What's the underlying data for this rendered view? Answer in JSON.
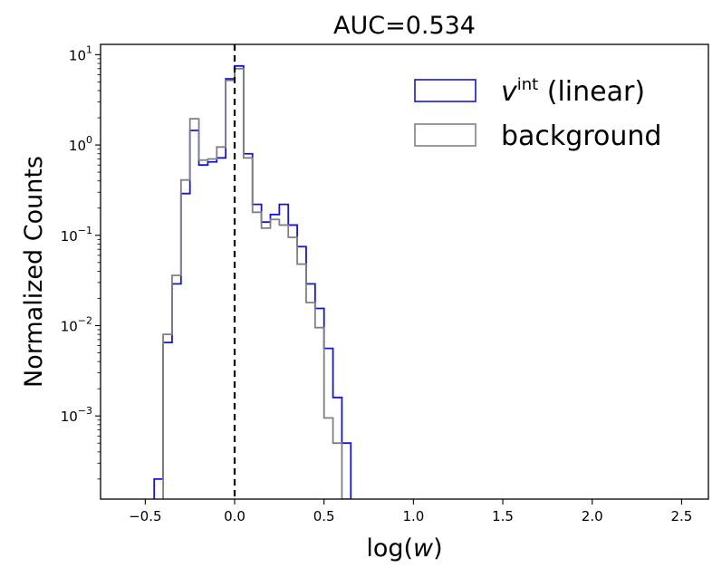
{
  "chart_data": {
    "type": "histogram",
    "title": "AUC=0.534",
    "xlabel": "log(w)",
    "xlabel_parts": {
      "prefix": "log(",
      "var": "w",
      "suffix": ")"
    },
    "ylabel": "Normalized Counts",
    "xlim": [
      -0.75,
      2.65
    ],
    "ylim": [
      0.00012,
      13
    ],
    "yscale": "log",
    "grid": false,
    "legend_position": "top-right",
    "x_ticks": [
      -0.5,
      0.0,
      0.5,
      1.0,
      1.5,
      2.0,
      2.5
    ],
    "x_tick_labels": [
      "−0.5",
      "0.0",
      "0.5",
      "1.0",
      "1.5",
      "2.0",
      "2.5"
    ],
    "y_ticks": [
      {
        "value": 10,
        "base": "10",
        "exp": "1"
      },
      {
        "value": 1,
        "base": "10",
        "exp": "0"
      },
      {
        "value": 0.1,
        "base": "10",
        "exp": "−1"
      },
      {
        "value": 0.01,
        "base": "10",
        "exp": "−2"
      },
      {
        "value": 0.001,
        "base": "10",
        "exp": "−3"
      }
    ],
    "reference_line": {
      "x": 0.0,
      "style": "dashed",
      "color": "#000000"
    },
    "bin_width": 0.05,
    "series": [
      {
        "legend": {
          "base": "v",
          "sup": "int",
          "rest": " (linear)"
        },
        "color": "#1515d4",
        "bin_edges": [
          -0.45,
          -0.4,
          -0.35,
          -0.3,
          -0.25,
          -0.2,
          -0.15,
          -0.1,
          -0.05,
          0.0,
          0.05,
          0.1,
          0.15,
          0.2,
          0.25,
          0.3,
          0.35,
          0.4,
          0.45,
          0.5,
          0.55,
          0.6,
          0.65
        ],
        "values": [
          0.0002,
          0.0065,
          0.029,
          0.29,
          1.45,
          0.6,
          0.65,
          0.72,
          5.4,
          7.5,
          0.8,
          0.22,
          0.14,
          0.17,
          0.22,
          0.13,
          0.075,
          0.029,
          0.0155,
          0.0056,
          0.0016,
          0.0005
        ]
      },
      {
        "legend": {
          "base": "",
          "sup": "",
          "rest": "background"
        },
        "color": "#808080",
        "bin_edges": [
          -0.4,
          -0.35,
          -0.3,
          -0.25,
          -0.2,
          -0.15,
          -0.1,
          -0.05,
          0.0,
          0.05,
          0.1,
          0.15,
          0.2,
          0.25,
          0.3,
          0.35,
          0.4,
          0.45,
          0.5,
          0.55,
          0.6,
          0.65
        ],
        "values": [
          0.008,
          0.036,
          0.41,
          1.95,
          0.68,
          0.7,
          0.95,
          5.2,
          7.0,
          0.72,
          0.18,
          0.12,
          0.15,
          0.13,
          0.095,
          0.048,
          0.018,
          0.0095,
          0.00095,
          0.0005,
          0.00012
        ]
      }
    ]
  }
}
